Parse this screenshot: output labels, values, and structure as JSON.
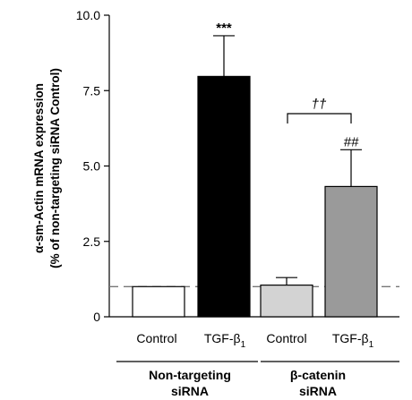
{
  "chart_data": {
    "type": "bar",
    "ylabel_line1": "α-sm-Actin mRNA expression",
    "ylabel_line2": "(% of non-targeting siRNA Control)",
    "ylim": [
      0,
      10
    ],
    "yticks": [
      "0",
      "2.5",
      "5.0",
      "7.5",
      "10.0"
    ],
    "ytick_values": [
      0,
      2.5,
      5.0,
      7.5,
      10.0
    ],
    "categories": [
      "Control",
      "TGF-β",
      "Control",
      "TGF-β"
    ],
    "category_subscripts": [
      "",
      "1",
      "",
      "1"
    ],
    "values": [
      1.0,
      7.97,
      1.05,
      4.32
    ],
    "errors": [
      0,
      1.35,
      0.25,
      1.22
    ],
    "bar_colors": [
      "#ffffff",
      "#000000",
      "#d3d3d3",
      "#9a9a9a"
    ],
    "annotations": [
      "",
      "***",
      "",
      "##"
    ],
    "groups": [
      {
        "line1": "Non-targeting",
        "line2": "siRNA"
      },
      {
        "line1": "β-catenin",
        "line2": "siRNA"
      }
    ],
    "bracket_label": "††",
    "bracket_between": [
      2,
      3
    ],
    "reference_line": 1.0
  }
}
